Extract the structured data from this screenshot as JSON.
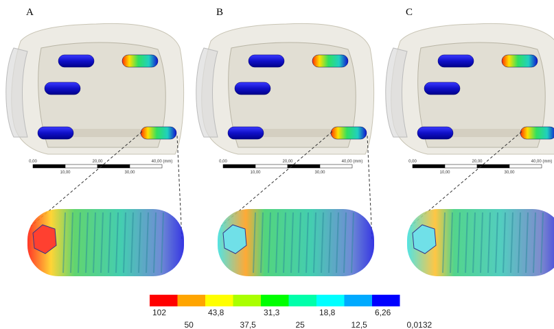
{
  "panels": [
    {
      "label": "A"
    },
    {
      "label": "B"
    },
    {
      "label": "C"
    }
  ],
  "scale_bar": {
    "labels": [
      "0,00",
      "10,00",
      "20,00",
      "30,00",
      "40,00 (mm)"
    ]
  },
  "legend": {
    "colors": [
      "#ff0000",
      "#ffa500",
      "#ffff00",
      "#aaff00",
      "#00ff00",
      "#00ffaa",
      "#00ffff",
      "#00aaff",
      "#0000ff"
    ],
    "upper_labels": [
      "102",
      "43,8",
      "31,3",
      "18,8",
      "6,26"
    ],
    "lower_labels": [
      "50",
      "37,5",
      "25",
      "12,5",
      "0,0132"
    ]
  }
}
